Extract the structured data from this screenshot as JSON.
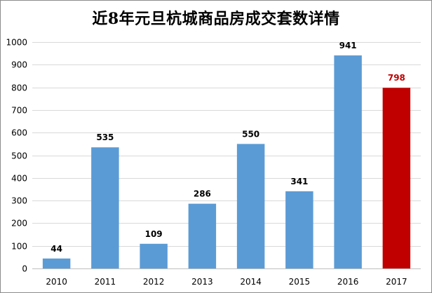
{
  "chart_data": {
    "type": "bar",
    "title": "近8年元旦杭城商品房成交套数详情",
    "xlabel": "",
    "ylabel": "",
    "categories": [
      "2010",
      "2011",
      "2012",
      "2013",
      "2014",
      "2015",
      "2016",
      "2017"
    ],
    "values": [
      44,
      535,
      109,
      286,
      550,
      341,
      941,
      798
    ],
    "ylim": [
      0,
      1000
    ],
    "yticks": [
      "0",
      "100",
      "200",
      "300",
      "400",
      "500",
      "600",
      "700",
      "800",
      "900",
      "1000"
    ],
    "grid": true,
    "legend": "none",
    "colors": {
      "bar": "#5b9bd5",
      "highlight_bar": "#c00000",
      "highlight_label": "#c00000",
      "label": "#000000",
      "grid": "#d9d9d9"
    },
    "highlight_category": "2017"
  }
}
